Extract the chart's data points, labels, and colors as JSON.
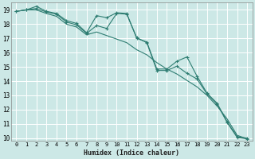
{
  "xlabel": "Humidex (Indice chaleur)",
  "bg_color": "#cce8e6",
  "grid_color": "#ffffff",
  "line_color": "#2e7d72",
  "xlim": [
    -0.5,
    23.5
  ],
  "ylim": [
    9.8,
    19.5
  ],
  "yticks": [
    10,
    11,
    12,
    13,
    14,
    15,
    16,
    17,
    18,
    19
  ],
  "xticks": [
    0,
    1,
    2,
    3,
    4,
    5,
    6,
    7,
    8,
    9,
    10,
    11,
    12,
    13,
    14,
    15,
    16,
    17,
    18,
    19,
    20,
    21,
    22,
    23
  ],
  "series1_x": [
    0,
    1,
    2,
    3,
    4,
    5,
    6,
    7,
    8,
    9,
    10,
    11,
    12,
    13,
    14,
    15,
    16,
    17,
    18,
    19,
    20,
    21,
    22,
    23
  ],
  "series1_y": [
    18.9,
    19.0,
    19.25,
    18.9,
    18.75,
    18.25,
    18.05,
    17.4,
    18.6,
    18.45,
    18.8,
    18.75,
    17.0,
    16.75,
    14.85,
    14.85,
    15.4,
    15.7,
    14.35,
    13.15,
    12.45,
    11.15,
    10.1,
    10.0
  ],
  "series2_x": [
    0,
    1,
    2,
    3,
    4,
    5,
    6,
    7,
    8,
    9,
    10,
    11,
    12,
    13,
    14,
    15,
    16,
    17,
    18,
    19,
    20,
    21,
    22,
    23
  ],
  "series2_y": [
    18.9,
    19.0,
    19.1,
    18.85,
    18.7,
    18.15,
    17.95,
    17.35,
    17.9,
    17.7,
    18.75,
    18.7,
    17.05,
    16.7,
    14.75,
    14.75,
    15.05,
    14.55,
    14.15,
    13.1,
    12.4,
    11.1,
    10.05,
    9.95
  ],
  "series3_x": [
    0,
    1,
    2,
    3,
    4,
    5,
    6,
    7,
    8,
    9,
    10,
    11,
    12,
    13,
    14,
    15,
    16,
    17,
    18,
    19,
    20,
    21,
    22,
    23
  ],
  "series3_y": [
    18.9,
    19.0,
    19.0,
    18.75,
    18.55,
    18.0,
    17.8,
    17.25,
    17.45,
    17.2,
    16.95,
    16.7,
    16.2,
    15.85,
    15.3,
    14.85,
    14.5,
    14.05,
    13.6,
    13.0,
    12.25,
    11.35,
    10.2,
    9.95
  ]
}
